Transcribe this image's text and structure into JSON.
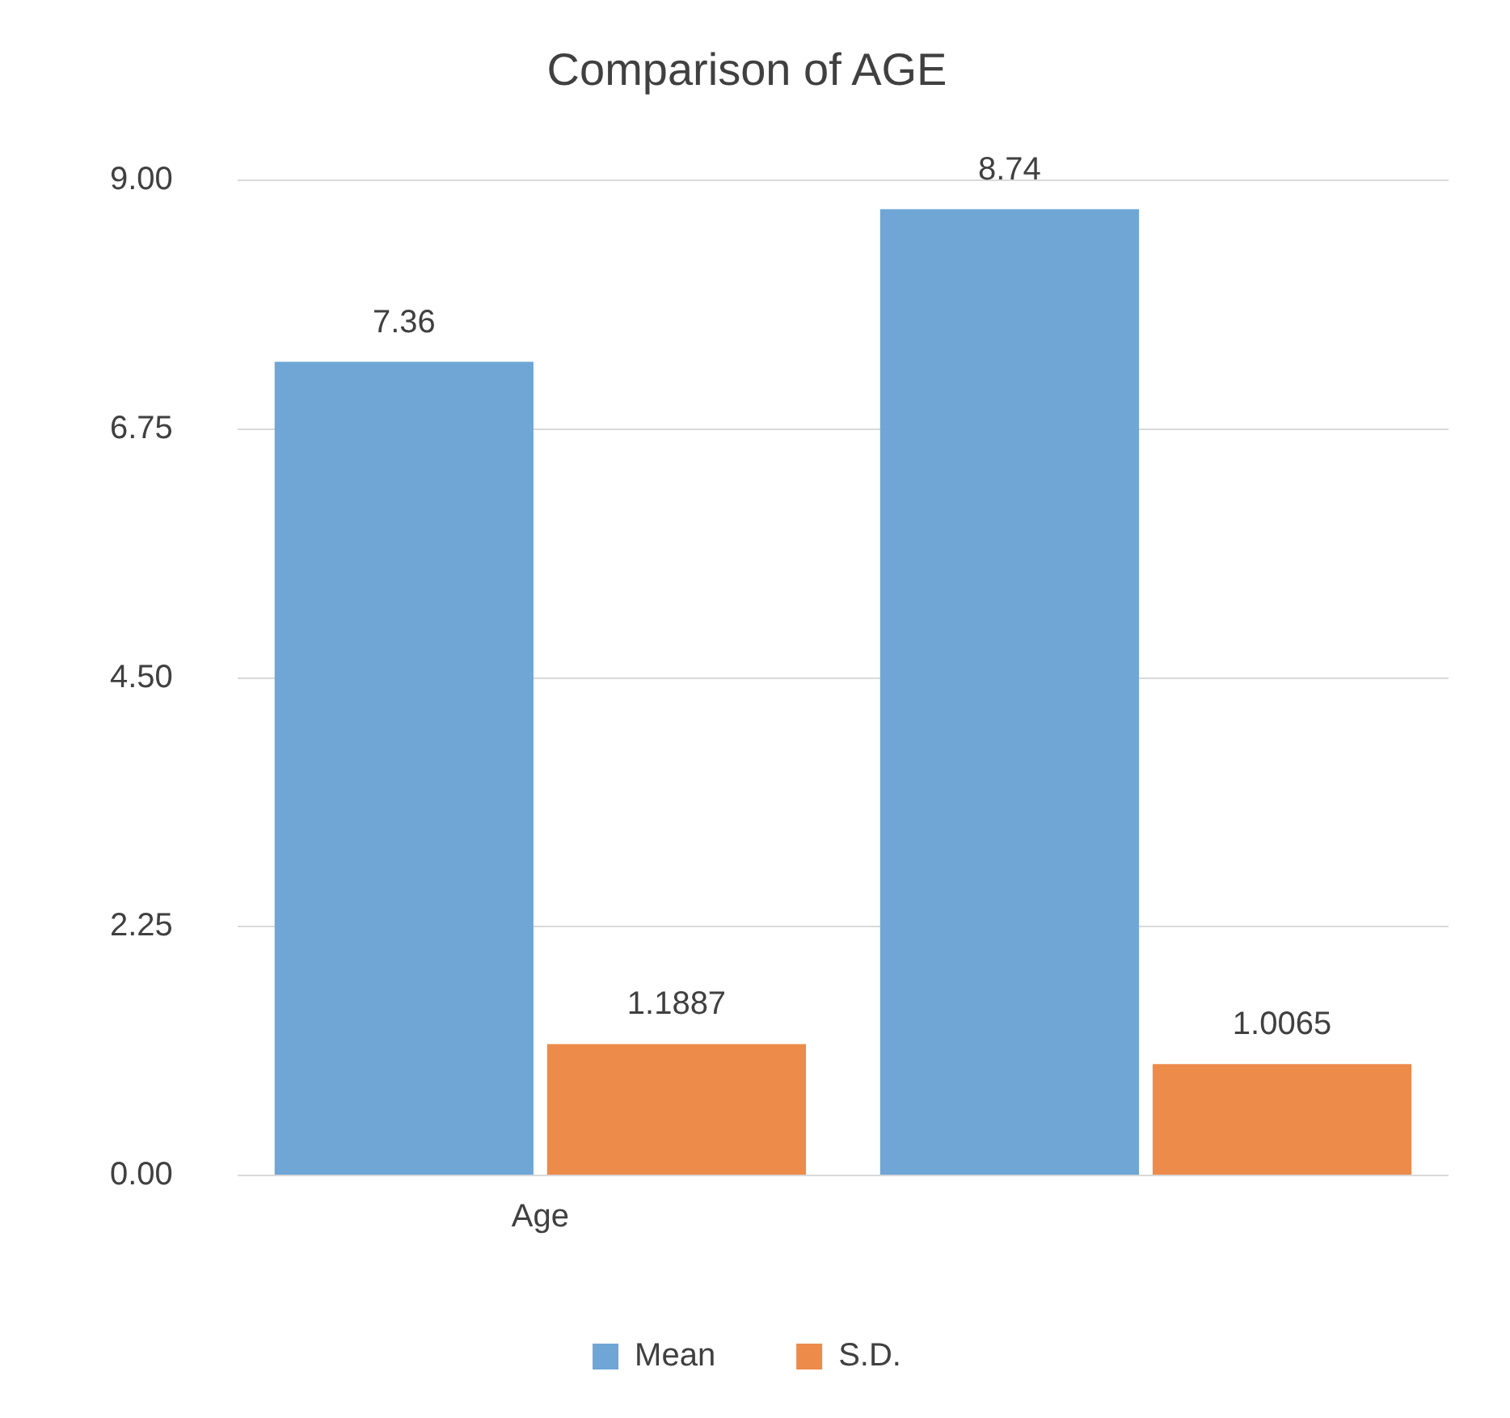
{
  "chart_data": {
    "type": "bar",
    "title": "Comparison of AGE",
    "categories": [
      "Age",
      null
    ],
    "series": [
      {
        "name": "Mean",
        "color": "#6fa6d6",
        "values": [
          7.36,
          8.74
        ]
      },
      {
        "name": "S.D.",
        "color": "#ed8b4b",
        "values": [
          1.1887,
          1.0065
        ]
      }
    ],
    "ylim": [
      0,
      9
    ],
    "yticks": [
      {
        "value": 0,
        "label": "0.00"
      },
      {
        "value": 2.25,
        "label": "2.25"
      },
      {
        "value": 4.5,
        "label": "4.50"
      },
      {
        "value": 6.75,
        "label": "6.75"
      },
      {
        "value": 9,
        "label": "9.00"
      }
    ],
    "grid": "y",
    "data_labels": true,
    "legend": "bottom"
  }
}
